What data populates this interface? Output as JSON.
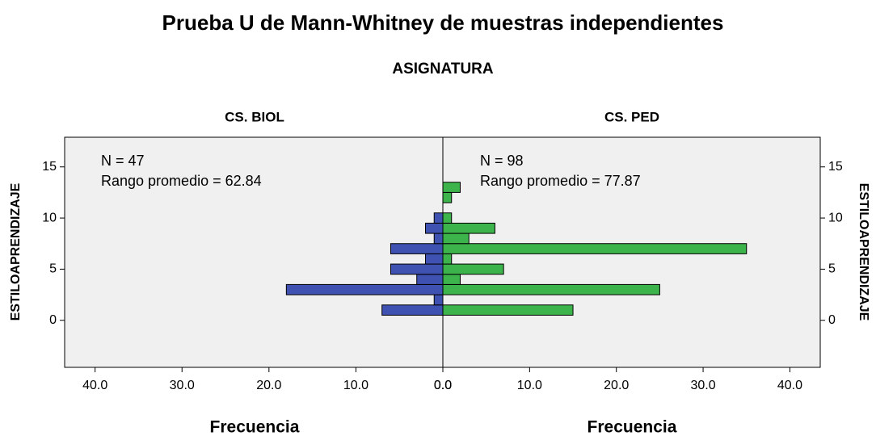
{
  "chart_data": {
    "type": "pyramid",
    "title": "Prueba U de Mann-Whitney de muestras independientes",
    "subtitle": "ASIGNATURA",
    "ylabel": "ESTILOAPRENDIZAJE",
    "xlabel": "Frecuencia",
    "y": [
      1,
      2,
      3,
      4,
      5,
      6,
      7,
      8,
      9,
      10,
      11,
      12,
      13
    ],
    "series": [
      {
        "name": "CS. BIOL",
        "color": "#3f51b1",
        "annotations": [
          "N = 47",
          "Rango promedio = 62.84"
        ],
        "values": [
          7,
          1,
          18,
          3,
          6,
          2,
          6,
          1,
          2,
          1,
          0,
          0,
          0
        ]
      },
      {
        "name": "CS. PED",
        "color": "#3cb44b",
        "annotations": [
          "N = 98",
          "Rango promedio = 77.87"
        ],
        "values": [
          15,
          0,
          25,
          2,
          7,
          1,
          35,
          3,
          6,
          1,
          0,
          1,
          2
        ]
      }
    ],
    "xlim": [
      0,
      43.5
    ],
    "xticks": [
      {
        "value": 0,
        "label": "0.0"
      },
      {
        "value": 10,
        "label": "10.0"
      },
      {
        "value": 20,
        "label": "20.0"
      },
      {
        "value": 30,
        "label": "30.0"
      },
      {
        "value": 40,
        "label": "40.0"
      }
    ],
    "ylim": [
      -4.6,
      17.9
    ],
    "yticks": [
      0,
      5,
      10,
      15
    ]
  }
}
